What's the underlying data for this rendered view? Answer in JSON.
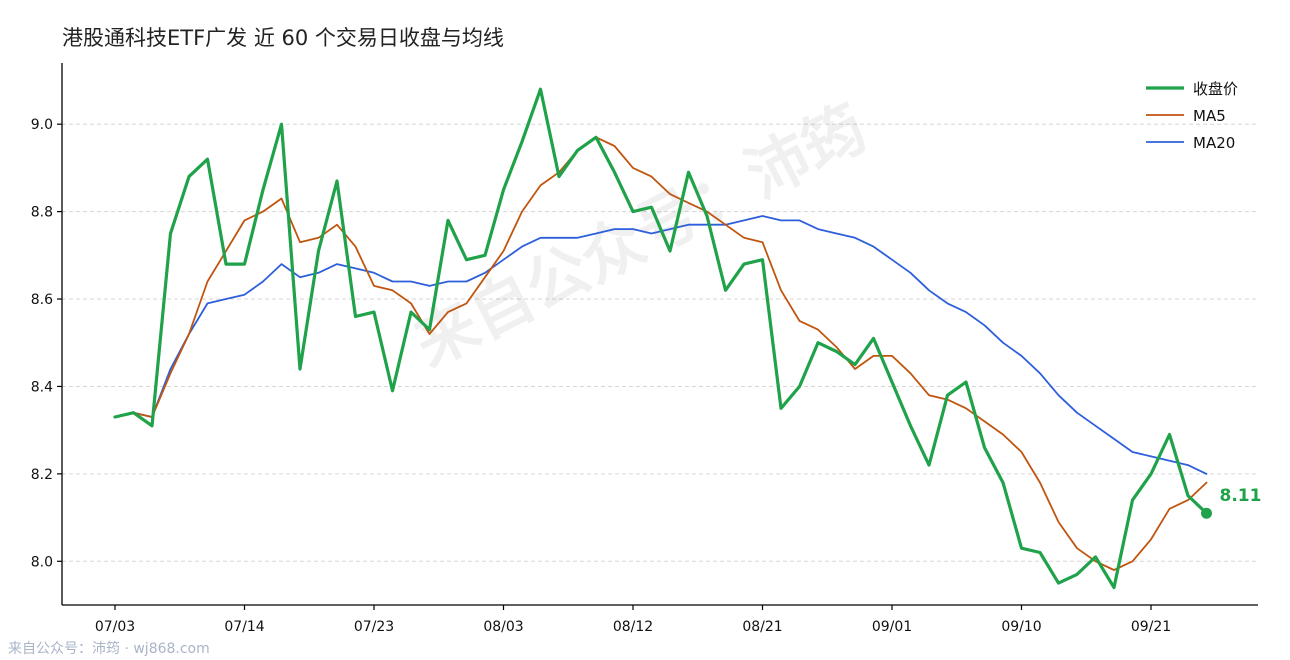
{
  "chart_data": {
    "type": "line",
    "title": "港股通科技ETF广发 近 60 个交易日收盘与均线",
    "xlabel": "",
    "ylabel": "",
    "ylim": [
      7.9,
      9.14
    ],
    "y_ticks": [
      "8.0",
      "8.2",
      "8.4",
      "8.6",
      "8.8",
      "9.0"
    ],
    "y_tick_values": [
      8.0,
      8.2,
      8.4,
      8.6,
      8.8,
      9.0
    ],
    "x_ticks": [
      {
        "label": "07/03",
        "index": 0
      },
      {
        "label": "07/14",
        "index": 7
      },
      {
        "label": "07/23",
        "index": 14
      },
      {
        "label": "08/03",
        "index": 21
      },
      {
        "label": "08/12",
        "index": 28
      },
      {
        "label": "08/21",
        "index": 35
      },
      {
        "label": "09/01",
        "index": 42
      },
      {
        "label": "09/10",
        "index": 49
      },
      {
        "label": "09/21",
        "index": 56
      }
    ],
    "grid": "horizontal-dashed",
    "legend_position": "top-right",
    "series": [
      {
        "name": "收盘价",
        "color": "#1fa24a",
        "values": [
          8.33,
          8.34,
          8.31,
          8.75,
          8.88,
          8.92,
          8.68,
          8.68,
          8.85,
          9.0,
          8.44,
          8.71,
          8.87,
          8.56,
          8.57,
          8.39,
          8.57,
          8.53,
          8.78,
          8.69,
          8.7,
          8.85,
          8.96,
          9.08,
          8.88,
          8.94,
          8.97,
          8.89,
          8.8,
          8.81,
          8.71,
          8.89,
          8.79,
          8.62,
          8.68,
          8.69,
          8.35,
          8.4,
          8.5,
          8.48,
          8.45,
          8.51,
          8.41,
          8.31,
          8.22,
          8.38,
          8.41,
          8.26,
          8.18,
          8.03,
          8.02,
          7.95,
          7.97,
          8.01,
          7.94,
          8.14,
          8.2,
          8.29,
          8.15,
          8.11
        ]
      },
      {
        "name": "MA5",
        "color": "#c0550f",
        "values": [
          8.33,
          8.34,
          8.33,
          8.43,
          8.52,
          8.64,
          8.71,
          8.78,
          8.8,
          8.83,
          8.73,
          8.74,
          8.77,
          8.72,
          8.63,
          8.62,
          8.59,
          8.52,
          8.57,
          8.59,
          8.65,
          8.71,
          8.8,
          8.86,
          8.89,
          8.94,
          8.97,
          8.95,
          8.9,
          8.88,
          8.84,
          8.82,
          8.8,
          8.77,
          8.74,
          8.73,
          8.62,
          8.55,
          8.53,
          8.49,
          8.44,
          8.47,
          8.47,
          8.43,
          8.38,
          8.37,
          8.35,
          8.32,
          8.29,
          8.25,
          8.18,
          8.09,
          8.03,
          8.0,
          7.98,
          8.0,
          8.05,
          8.12,
          8.14,
          8.18
        ]
      },
      {
        "name": "MA20",
        "color": "#2e5fdb",
        "values": [
          8.33,
          8.34,
          8.33,
          8.44,
          8.52,
          8.59,
          8.6,
          8.61,
          8.64,
          8.68,
          8.65,
          8.66,
          8.68,
          8.67,
          8.66,
          8.64,
          8.64,
          8.63,
          8.64,
          8.64,
          8.66,
          8.69,
          8.72,
          8.74,
          8.74,
          8.74,
          8.75,
          8.76,
          8.76,
          8.75,
          8.76,
          8.77,
          8.77,
          8.77,
          8.78,
          8.79,
          8.78,
          8.78,
          8.76,
          8.75,
          8.74,
          8.72,
          8.69,
          8.66,
          8.62,
          8.59,
          8.57,
          8.54,
          8.5,
          8.47,
          8.43,
          8.38,
          8.34,
          8.31,
          8.28,
          8.25,
          8.24,
          8.23,
          8.22,
          8.2
        ]
      }
    ],
    "last_value_label": "8.11"
  },
  "watermark": "来自公众号：沛筠",
  "footer": "来自公众号：沛筠 · wj868.com"
}
